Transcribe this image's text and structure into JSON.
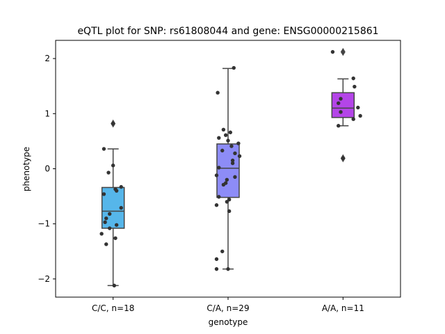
{
  "chart_data": {
    "type": "box",
    "title": "eQTL plot for SNP: rs61808044 and gene: ENSG00000215861",
    "xlabel": "genotype",
    "ylabel": "phenotype",
    "ylim": [
      -2.33,
      2.33
    ],
    "yticks": [
      -2,
      -1,
      0,
      1,
      2
    ],
    "ytick_labels": [
      "−2",
      "−1",
      "0",
      "1",
      "2"
    ],
    "categories": [
      "C/C, n=18",
      "C/A, n=29",
      "A/A, n=11"
    ],
    "colors": [
      "#56b6ea",
      "#8d8cf7",
      "#b445e8"
    ],
    "boxes": [
      {
        "q1": -1.08,
        "median": -0.77,
        "q3": -0.34,
        "whisker_low": -2.12,
        "whisker_high": 0.36,
        "outliers": [
          0.82
        ]
      },
      {
        "q1": -0.52,
        "median": 0.01,
        "q3": 0.45,
        "whisker_low": -1.82,
        "whisker_high": 1.82,
        "outliers": []
      },
      {
        "q1": 0.93,
        "median": 1.1,
        "q3": 1.38,
        "whisker_low": 0.78,
        "whisker_high": 1.63,
        "outliers": [
          2.12,
          0.19
        ]
      }
    ],
    "points": [
      [
        {
          "dx": -0.08,
          "y": 0.36
        },
        {
          "dx": 0.0,
          "y": 0.82
        },
        {
          "dx": -0.04,
          "y": -0.07
        },
        {
          "dx": 0.0,
          "y": 0.06
        },
        {
          "dx": 0.07,
          "y": -0.33
        },
        {
          "dx": 0.02,
          "y": -0.37
        },
        {
          "dx": 0.03,
          "y": -0.4
        },
        {
          "dx": -0.08,
          "y": -0.46
        },
        {
          "dx": 0.07,
          "y": -0.71
        },
        {
          "dx": -0.03,
          "y": -0.82
        },
        {
          "dx": -0.06,
          "y": -0.9
        },
        {
          "dx": -0.07,
          "y": -0.97
        },
        {
          "dx": 0.03,
          "y": -1.02
        },
        {
          "dx": -0.03,
          "y": -1.08
        },
        {
          "dx": -0.1,
          "y": -1.18
        },
        {
          "dx": 0.02,
          "y": -1.26
        },
        {
          "dx": -0.06,
          "y": -1.37
        },
        {
          "dx": 0.01,
          "y": -2.12
        }
      ],
      [
        {
          "dx": 0.05,
          "y": 1.83
        },
        {
          "dx": -0.09,
          "y": 1.38
        },
        {
          "dx": -0.04,
          "y": 0.71
        },
        {
          "dx": 0.02,
          "y": 0.66
        },
        {
          "dx": -0.08,
          "y": 0.56
        },
        {
          "dx": -0.02,
          "y": 0.61
        },
        {
          "dx": 0.0,
          "y": 0.51
        },
        {
          "dx": 0.09,
          "y": 0.46
        },
        {
          "dx": 0.03,
          "y": 0.41
        },
        {
          "dx": -0.05,
          "y": 0.33
        },
        {
          "dx": 0.06,
          "y": 0.28
        },
        {
          "dx": 0.1,
          "y": 0.23
        },
        {
          "dx": 0.04,
          "y": 0.15
        },
        {
          "dx": 0.04,
          "y": 0.1
        },
        {
          "dx": -0.08,
          "y": 0.02
        },
        {
          "dx": -0.1,
          "y": -0.12
        },
        {
          "dx": 0.06,
          "y": -0.15
        },
        {
          "dx": -0.01,
          "y": -0.2
        },
        {
          "dx": -0.02,
          "y": -0.26
        },
        {
          "dx": -0.04,
          "y": -0.29
        },
        {
          "dx": -0.08,
          "y": -0.51
        },
        {
          "dx": 0.01,
          "y": -0.56
        },
        {
          "dx": -0.01,
          "y": -0.6
        },
        {
          "dx": -0.1,
          "y": -0.66
        },
        {
          "dx": 0.01,
          "y": -0.77
        },
        {
          "dx": -0.05,
          "y": -1.5
        },
        {
          "dx": -0.1,
          "y": -1.64
        },
        {
          "dx": -0.1,
          "y": -1.82
        },
        {
          "dx": 0.0,
          "y": -1.82
        }
      ],
      [
        {
          "dx": -0.09,
          "y": 2.12
        },
        {
          "dx": 0.09,
          "y": 1.64
        },
        {
          "dx": 0.1,
          "y": 1.49
        },
        {
          "dx": -0.02,
          "y": 1.27
        },
        {
          "dx": -0.04,
          "y": 1.19
        },
        {
          "dx": 0.13,
          "y": 1.11
        },
        {
          "dx": -0.02,
          "y": 1.03
        },
        {
          "dx": 0.15,
          "y": 0.96
        },
        {
          "dx": 0.09,
          "y": 0.9
        },
        {
          "dx": -0.04,
          "y": 0.78
        },
        {
          "dx": 0.0,
          "y": 0.19
        }
      ]
    ],
    "grid": false,
    "legend": "none"
  }
}
